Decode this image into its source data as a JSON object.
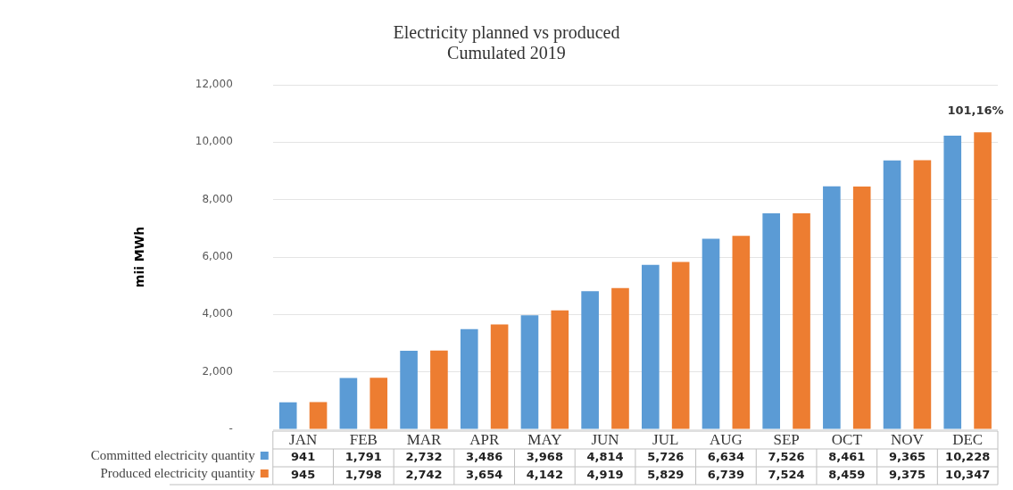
{
  "chart_data": {
    "type": "bar",
    "title": "Electricity planned vs produced",
    "subtitle": "Cumulated 2019",
    "ylabel": "mii MWh",
    "categories": [
      "JAN",
      "FEB",
      "MAR",
      "APR",
      "MAY",
      "JUN",
      "JUL",
      "AUG",
      "SEP",
      "OCT",
      "NOV",
      "DEC"
    ],
    "series": [
      {
        "name": "Committed electricity quantity",
        "color": "#5b9bd5",
        "values": [
          941,
          1791,
          2732,
          3486,
          3968,
          4814,
          5726,
          6634,
          7526,
          8461,
          9365,
          10228
        ],
        "value_labels": [
          "941",
          "1,791",
          "2,732",
          "3,486",
          "3,968",
          "4,814",
          "5,726",
          "6,634",
          "7,526",
          "8,461",
          "9,365",
          "10,228"
        ]
      },
      {
        "name": "Produced electricity quantity",
        "color": "#ed7d31",
        "values": [
          945,
          1798,
          2742,
          3654,
          4142,
          4919,
          5829,
          6739,
          7524,
          8459,
          9375,
          10347
        ],
        "value_labels": [
          "945",
          "1,798",
          "2,742",
          "3,654",
          "4,142",
          "4,919",
          "5,829",
          "6,739",
          "7,524",
          "8,459",
          "9,375",
          "10,347"
        ]
      }
    ],
    "ylim": [
      0,
      12000
    ],
    "yticks": [
      {
        "value": 0,
        "label": "-"
      },
      {
        "value": 2000,
        "label": "2,000"
      },
      {
        "value": 4000,
        "label": "4,000"
      },
      {
        "value": 6000,
        "label": "6,000"
      },
      {
        "value": 8000,
        "label": "8,000"
      },
      {
        "value": 10000,
        "label": "10,000"
      },
      {
        "value": 12000,
        "label": "12,000"
      }
    ],
    "grid": "y",
    "legend": "bottom left",
    "annotations": [
      "101,16%"
    ]
  }
}
